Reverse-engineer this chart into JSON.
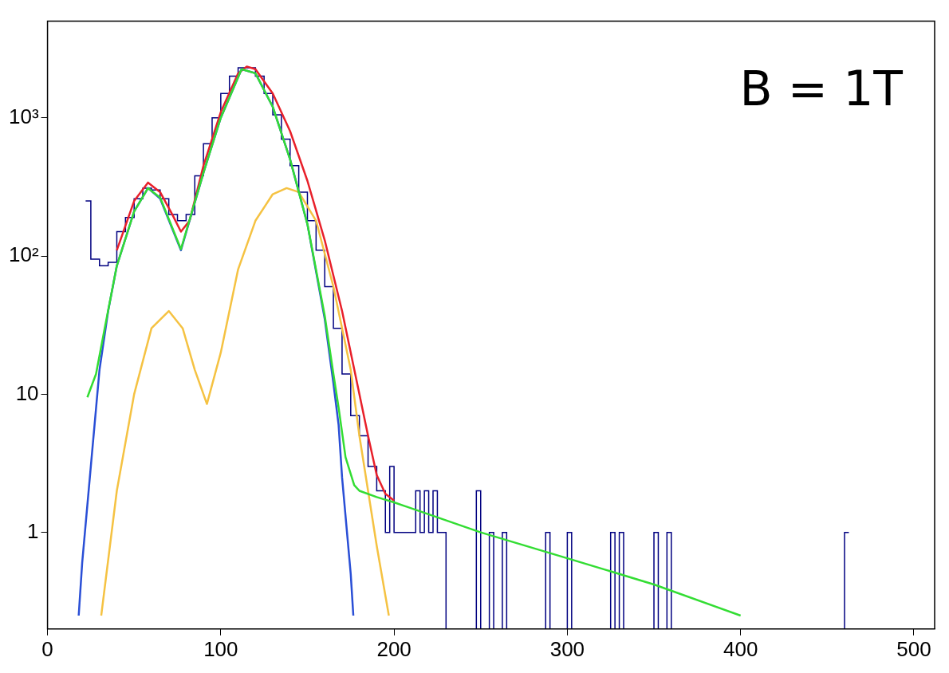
{
  "chart_data": {
    "type": "histogram",
    "bins": [
      22,
      25,
      30,
      35,
      40,
      45,
      50,
      55,
      60,
      65,
      70,
      75,
      80,
      85,
      90,
      95,
      100,
      105,
      110,
      115,
      120,
      125,
      130,
      135,
      140,
      145,
      150,
      155,
      160,
      165,
      170,
      175,
      180,
      185,
      190,
      195,
      197.5,
      200,
      210,
      212.5,
      215,
      217.5,
      220,
      222.5,
      225,
      227.5,
      230,
      247.5,
      250,
      255,
      257.5,
      262.5,
      265,
      287.5,
      290,
      300,
      302.5,
      325,
      327.5,
      330,
      332.5,
      350,
      352.5,
      357.5,
      360,
      460,
      462.5
    ],
    "values": [
      250,
      95,
      85,
      90,
      150,
      190,
      260,
      310,
      300,
      260,
      200,
      180,
      200,
      380,
      650,
      1000,
      1500,
      2000,
      2300,
      2300,
      2000,
      1500,
      1050,
      700,
      450,
      290,
      180,
      110,
      60,
      30,
      14,
      7,
      5,
      3,
      2,
      1,
      3,
      1,
      1,
      2,
      1,
      2,
      1,
      2,
      1,
      1,
      null,
      2,
      null,
      1,
      null,
      1,
      null,
      1,
      null,
      1,
      null,
      1,
      null,
      1,
      null,
      1,
      null,
      1,
      null,
      1
    ],
    "color": "#000080",
    "series": [
      {
        "type": "line",
        "color": "#33dd33",
        "x": [
          23,
          28,
          33,
          40,
          50,
          58,
          65,
          77,
          90,
          100,
          112,
          120,
          130,
          140,
          150,
          160,
          165,
          168,
          172,
          177,
          180,
          190,
          200,
          250,
          300,
          350,
          400
        ],
        "values": [
          9.5,
          14,
          30,
          85,
          210,
          310,
          265,
          112,
          400,
          1000,
          2250,
          2100,
          1200,
          500,
          170,
          37,
          14,
          8,
          3.5,
          2.2,
          2,
          1.8,
          1.65,
          1.0,
          0.65,
          0.42,
          0.25
        ]
      },
      {
        "type": "line",
        "color": "#2a4fd6",
        "x": [
          18,
          20,
          25,
          30,
          35,
          40,
          50,
          58,
          65,
          77,
          90,
          100,
          112,
          120,
          130,
          140,
          150,
          160,
          165,
          168,
          170,
          175,
          176.5
        ],
        "values": [
          0.25,
          0.6,
          3,
          15,
          40,
          85,
          210,
          310,
          260,
          110,
          400,
          1000,
          2250,
          2100,
          1200,
          500,
          170,
          35,
          12,
          6,
          2.5,
          0.5,
          0.25
        ]
      },
      {
        "type": "line",
        "color": "#f5c242",
        "x": [
          31,
          40,
          50,
          60,
          70,
          78,
          85,
          92,
          100,
          110,
          120,
          130,
          138,
          145,
          155,
          165,
          175,
          180,
          185,
          190,
          197
        ],
        "values": [
          0.25,
          2,
          10,
          30,
          40,
          30,
          15,
          8.5,
          20,
          80,
          180,
          280,
          310,
          290,
          180,
          60,
          15,
          5,
          2,
          0.8,
          0.25
        ]
      },
      {
        "type": "line",
        "color": "#e8202a",
        "x": [
          40,
          50,
          58,
          65,
          72,
          77,
          82,
          90,
          100,
          110,
          115,
          120,
          130,
          140,
          150,
          160,
          170,
          180,
          185,
          190,
          195,
          200
        ],
        "values": [
          110,
          250,
          340,
          290,
          200,
          150,
          180,
          450,
          1100,
          2100,
          2350,
          2250,
          1500,
          800,
          350,
          130,
          40,
          10,
          5,
          2.6,
          1.9,
          1.7
        ]
      }
    ],
    "xlim": [
      0,
      512
    ],
    "xticks": [
      0,
      100,
      200,
      300,
      400,
      500
    ],
    "ylim": [
      0.2,
      5000
    ],
    "yticks": [
      1,
      10,
      {
        "value": 100,
        "label": "10²"
      },
      {
        "value": 1000,
        "label": "10³"
      }
    ],
    "log": "y",
    "grid": false,
    "marker": "none",
    "annotations": [
      "B = 1T"
    ]
  }
}
